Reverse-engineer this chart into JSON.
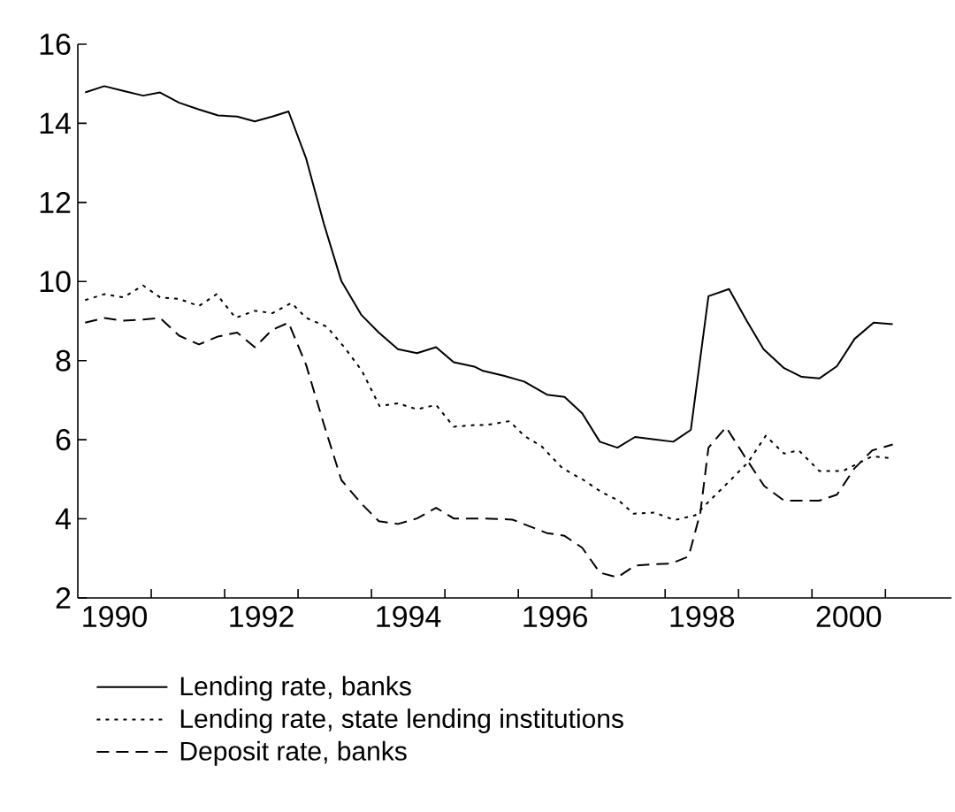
{
  "chart_data": {
    "type": "line",
    "xlim": [
      1989.5,
      2001.4
    ],
    "ylim": [
      2,
      16
    ],
    "xticks": [
      1990,
      {
        "value": 1990.5,
        "label": null
      },
      {
        "value": 1991.5,
        "label": null
      },
      1992,
      {
        "value": 1992.5,
        "label": null
      },
      {
        "value": 1993.5,
        "label": null
      },
      1994,
      {
        "value": 1994.5,
        "label": null
      },
      {
        "value": 1995.5,
        "label": null
      },
      1996,
      {
        "value": 1996.5,
        "label": null
      },
      {
        "value": 1997.5,
        "label": null
      },
      1998,
      {
        "value": 1998.5,
        "label": null
      },
      {
        "value": 1999.5,
        "label": null
      },
      2000,
      {
        "value": 2000.5,
        "label": null
      }
    ],
    "yticks": [
      2,
      4,
      6,
      8,
      10,
      12,
      14,
      16
    ],
    "grid": false,
    "legend": "bottom",
    "marker": "none",
    "series": [
      {
        "name": "Lending rate, banks",
        "color": "#000000",
        "line_style": "solid",
        "x": [
          1989.6,
          1989.86,
          1990.12,
          1990.39,
          1990.62,
          1990.88,
          1991.15,
          1991.41,
          1991.67,
          1991.91,
          1992.15,
          1992.37,
          1992.61,
          1992.85,
          1993.09,
          1993.36,
          1993.6,
          1993.86,
          1994.12,
          1994.38,
          1994.62,
          1994.9,
          1995.02,
          1995.3,
          1995.58,
          1995.89,
          1996.13,
          1996.37,
          1996.61,
          1996.85,
          1997.09,
          1997.35,
          1997.61,
          1997.85,
          1998.09,
          1998.37,
          1998.61,
          1998.84,
          1999.12,
          1999.36,
          1999.6,
          1999.84,
          2000.08,
          2000.34,
          2000.6
        ],
        "values": [
          14.78,
          14.94,
          14.82,
          14.7,
          14.78,
          14.52,
          14.35,
          14.2,
          14.17,
          14.05,
          14.17,
          14.3,
          13.11,
          11.47,
          10.01,
          9.16,
          8.71,
          8.29,
          8.19,
          8.34,
          7.96,
          7.85,
          7.74,
          7.62,
          7.47,
          7.14,
          7.08,
          6.67,
          5.95,
          5.8,
          6.07,
          6.01,
          5.95,
          6.25,
          9.63,
          9.81,
          9.01,
          8.29,
          7.81,
          7.59,
          7.55,
          7.86,
          8.55,
          8.96,
          8.92
        ]
      },
      {
        "name": "Lending rate, state lending institutions",
        "color": "#000000",
        "line_style": "dotted",
        "x": [
          1989.6,
          1989.86,
          1990.12,
          1990.39,
          1990.62,
          1990.88,
          1991.15,
          1991.39,
          1991.65,
          1991.91,
          1992.15,
          1992.41,
          1992.61,
          1992.89,
          1993.13,
          1993.37,
          1993.61,
          1993.86,
          1994.12,
          1994.38,
          1994.62,
          1994.9,
          1995.06,
          1995.38,
          1995.58,
          1995.82,
          1996.1,
          1996.39,
          1996.63,
          1996.87,
          1997.07,
          1997.35,
          1997.63,
          1997.91,
          1998.15,
          1998.39,
          1998.63,
          1998.87,
          1999.12,
          1999.32,
          1999.6,
          1999.92,
          2000.32,
          2000.6
        ],
        "values": [
          9.53,
          9.68,
          9.6,
          9.9,
          9.6,
          9.56,
          9.38,
          9.68,
          9.08,
          9.26,
          9.2,
          9.46,
          9.08,
          8.86,
          8.34,
          7.74,
          6.85,
          6.92,
          6.77,
          6.88,
          6.33,
          6.37,
          6.37,
          6.47,
          6.1,
          5.83,
          5.28,
          4.98,
          4.68,
          4.46,
          4.13,
          4.16,
          3.97,
          4.09,
          4.54,
          4.98,
          5.43,
          6.1,
          5.65,
          5.73,
          5.21,
          5.21,
          5.58,
          5.53
        ]
      },
      {
        "name": "Deposit rate, banks",
        "color": "#000000",
        "line_style": "dashed",
        "x": [
          1989.6,
          1989.86,
          1990.12,
          1990.39,
          1990.62,
          1990.88,
          1991.15,
          1991.41,
          1991.67,
          1991.91,
          1992.15,
          1992.37,
          1992.61,
          1992.85,
          1993.09,
          1993.36,
          1993.6,
          1993.86,
          1994.12,
          1994.38,
          1994.62,
          1994.9,
          1995.02,
          1995.42,
          1995.89,
          1996.13,
          1996.37,
          1996.61,
          1996.85,
          1997.09,
          1997.35,
          1997.58,
          1997.82,
          1997.98,
          1998.09,
          1998.33,
          1998.61,
          1998.85,
          1999.12,
          1999.36,
          1999.6,
          1999.84,
          2000.08,
          2000.32,
          2000.6
        ],
        "values": [
          8.96,
          9.08,
          9.01,
          9.04,
          9.08,
          8.63,
          8.41,
          8.61,
          8.71,
          8.34,
          8.78,
          8.96,
          7.89,
          6.4,
          4.98,
          4.39,
          3.94,
          3.87,
          4.01,
          4.28,
          4.01,
          4.01,
          4.01,
          3.98,
          3.64,
          3.57,
          3.27,
          2.64,
          2.52,
          2.82,
          2.85,
          2.87,
          3.05,
          4.16,
          5.8,
          6.32,
          5.5,
          4.83,
          4.46,
          4.46,
          4.46,
          4.61,
          5.28,
          5.73,
          5.88
        ]
      }
    ]
  }
}
